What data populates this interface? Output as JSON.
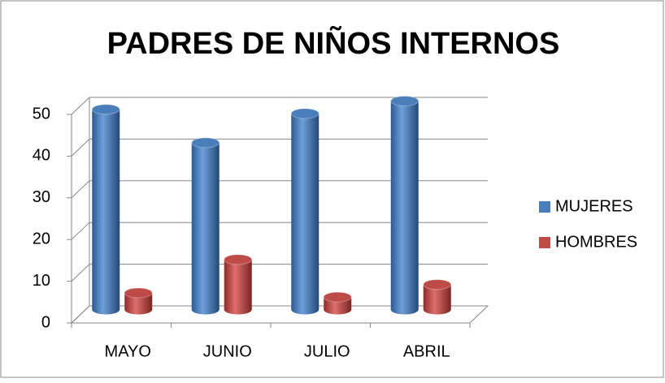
{
  "chart_data": {
    "type": "bar3d",
    "title": "PADRES DE NIÑOS INTERNOS",
    "categories": [
      "MAYO",
      "JUNIO",
      "JULIO",
      "ABRIL"
    ],
    "series": [
      {
        "name": "MUJERES",
        "color": "#4a7ebb",
        "values": [
          48,
          40,
          47,
          50
        ]
      },
      {
        "name": "HOMBRES",
        "color": "#be4b48",
        "values": [
          4,
          12,
          3,
          6
        ]
      }
    ],
    "ylim": [
      0,
      50
    ],
    "yticks": [
      0,
      10,
      20,
      30,
      40,
      50
    ],
    "grid": true,
    "legend": "right"
  }
}
